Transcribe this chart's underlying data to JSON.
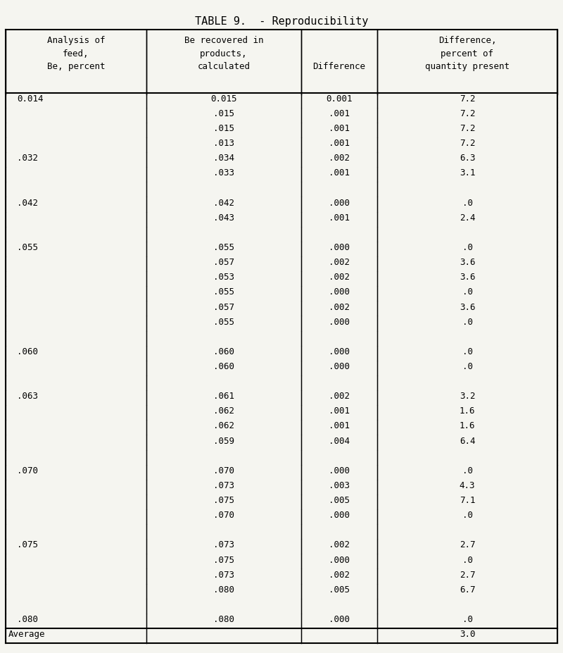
{
  "title": "TABLE 9.  - Reproducibility",
  "col_headers": [
    [
      "Analysis of",
      "feed,",
      "Be, percent"
    ],
    [
      "Be recovered in",
      "products,",
      "calculated"
    ],
    [
      "",
      "",
      "Difference"
    ],
    [
      "Difference,",
      "percent of",
      "quantity present"
    ]
  ],
  "rows": [
    [
      "0.014",
      "0.015",
      "0.001",
      "7.2"
    ],
    [
      "",
      ".015",
      ".001",
      "7.2"
    ],
    [
      "",
      ".015",
      ".001",
      "7.2"
    ],
    [
      "",
      ".013",
      ".001",
      "7.2"
    ],
    [
      ".032",
      ".034",
      ".002",
      "6.3"
    ],
    [
      "",
      ".033",
      ".001",
      "3.1"
    ],
    [
      "",
      "",
      "",
      ""
    ],
    [
      ".042",
      ".042",
      ".000",
      ".0"
    ],
    [
      "",
      ".043",
      ".001",
      "2.4"
    ],
    [
      "",
      "",
      "",
      ""
    ],
    [
      ".055",
      ".055",
      ".000",
      ".0"
    ],
    [
      "",
      ".057",
      ".002",
      "3.6"
    ],
    [
      "",
      ".053",
      ".002",
      "3.6"
    ],
    [
      "",
      ".055",
      ".000",
      ".0"
    ],
    [
      "",
      ".057",
      ".002",
      "3.6"
    ],
    [
      "",
      ".055",
      ".000",
      ".0"
    ],
    [
      "",
      "",
      "",
      ""
    ],
    [
      ".060",
      ".060",
      ".000",
      ".0"
    ],
    [
      "",
      ".060",
      ".000",
      ".0"
    ],
    [
      "",
      "",
      "",
      ""
    ],
    [
      ".063",
      ".061",
      ".002",
      "3.2"
    ],
    [
      "",
      ".062",
      ".001",
      "1.6"
    ],
    [
      "",
      ".062",
      ".001",
      "1.6"
    ],
    [
      "",
      ".059",
      ".004",
      "6.4"
    ],
    [
      "",
      "",
      "",
      ""
    ],
    [
      ".070",
      ".070",
      ".000",
      ".0"
    ],
    [
      "",
      ".073",
      ".003",
      "4.3"
    ],
    [
      "",
      ".075",
      ".005",
      "7.1"
    ],
    [
      "",
      ".070",
      ".000",
      ".0"
    ],
    [
      "",
      "",
      "",
      ""
    ],
    [
      ".075",
      ".073",
      ".002",
      "2.7"
    ],
    [
      "",
      ".075",
      ".000",
      ".0"
    ],
    [
      "",
      ".073",
      ".002",
      "2.7"
    ],
    [
      "",
      ".080",
      ".005",
      "6.7"
    ],
    [
      "",
      "",
      "",
      ""
    ],
    [
      ".080",
      ".080",
      ".000",
      ".0"
    ],
    [
      "Average",
      "",
      "",
      "3.0"
    ]
  ],
  "background": "#f5f5f0",
  "font_family": "monospace"
}
